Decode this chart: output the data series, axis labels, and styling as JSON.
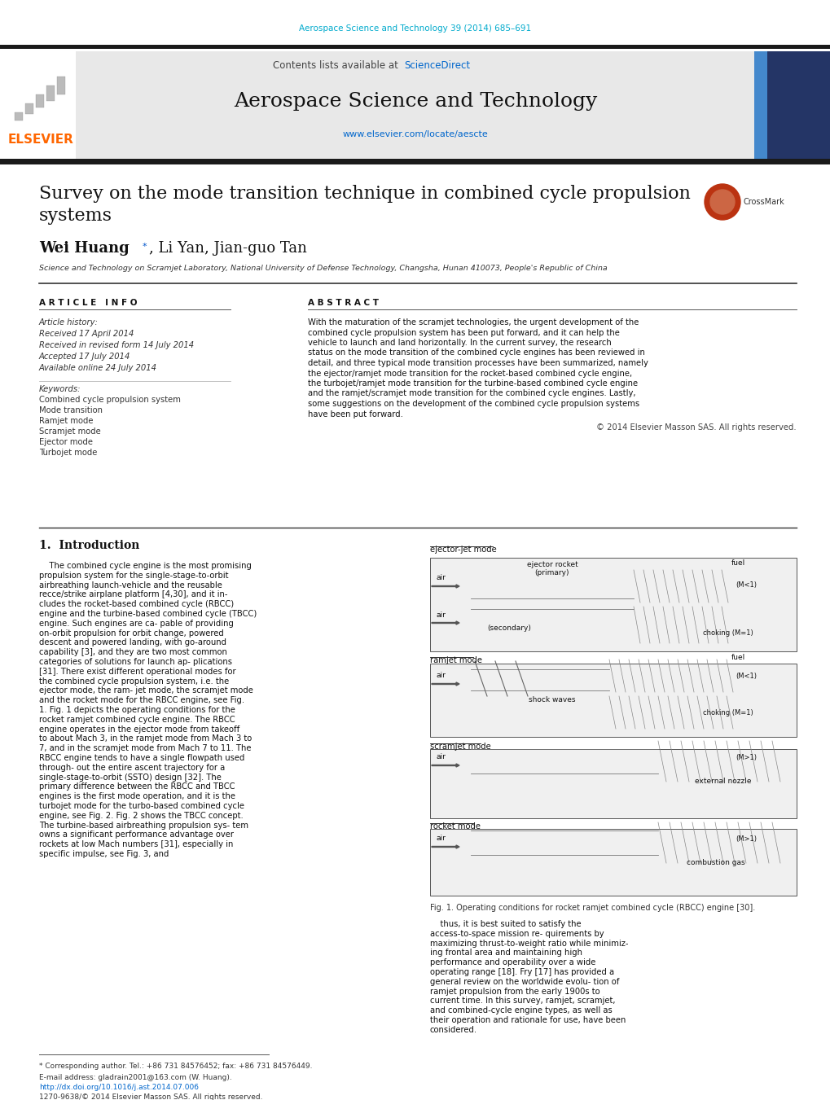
{
  "page_width": 10.2,
  "page_height": 13.51,
  "bg_color": "#ffffff",
  "header_journal_text": "Aerospace Science and Technology 39 (2014) 685–691",
  "header_journal_color": "#00aacc",
  "journal_name": "Aerospace Science and Technology",
  "contents_text": "Contents lists available at",
  "sciencedirect_text": "ScienceDirect",
  "sciencedirect_color": "#0066cc",
  "journal_url": "www.elsevier.com/locate/aescte",
  "journal_url_color": "#0066cc",
  "elsevier_color": "#ff6600",
  "elsevier_text": "ELSEVIER",
  "header_bg": "#e8e8e8",
  "dark_bar_color": "#1a1a1a",
  "paper_title_line1": "Survey on the mode transition technique in combined cycle propulsion",
  "paper_title_line2": "systems",
  "authors_bold": "Wei Huang",
  "authors_rest": ", Li Yan, Jian-guo Tan",
  "affiliation": "Science and Technology on Scramjet Laboratory, National University of Defense Technology, Changsha, Hunan 410073, People's Republic of China",
  "article_info_title": "A R T I C L E   I N F O",
  "abstract_title": "A B S T R A C T",
  "article_history_label": "Article history:",
  "received": "Received 17 April 2014",
  "revised": "Received in revised form 14 July 2014",
  "accepted": "Accepted 17 July 2014",
  "available": "Available online 24 July 2014",
  "keywords_label": "Keywords:",
  "keywords": [
    "Combined cycle propulsion system",
    "Mode transition",
    "Ramjet mode",
    "Scramjet mode",
    "Ejector mode",
    "Turbojet mode"
  ],
  "abstract_text": "With the maturation of the scramjet technologies, the urgent development of the combined cycle propulsion system has been put forward, and it can help the vehicle to launch and land horizontally. In the current survey, the research status on the mode transition of the combined cycle engines has been reviewed in detail, and three typical mode transition processes have been summarized, namely the ejector/ramjet mode transition for the rocket-based combined cycle engine, the turbojet/ramjet mode transition for the turbine-based combined cycle engine and the ramjet/scramjet mode transition for the combined cycle engines. Lastly, some suggestions on the development of the combined cycle propulsion systems have been put forward.",
  "copyright": "© 2014 Elsevier Masson SAS. All rights reserved.",
  "section1_title": "1.  Introduction",
  "intro_text": "The combined cycle engine is the most promising propulsion system for the single-stage-to-orbit airbreathing launch-vehicle and the reusable recce/strike airplane platform [4,30], and it in- cludes the rocket-based combined cycle (RBCC) engine and the turbine-based combined cycle (TBCC) engine. Such engines are ca- pable of providing on-orbit propulsion for orbit change, powered descent and powered landing, with go-around capability [3], and they are two most common categories of solutions for launch ap- plications [31]. There exist different operational modes for the combined cycle propulsion system, i.e. the ejector mode, the ram- jet mode, the scramjet mode and the rocket mode for the RBCC engine, see Fig. 1. Fig. 1 depicts the operating conditions for the rocket ramjet combined cycle engine. The RBCC engine operates in the ejector mode from takeoff to about Mach 3, in the ramjet mode from Mach 3 to 7, and in the scramjet mode from Mach 7 to 11. The RBCC engine tends to have a single flowpath used through- out the entire ascent trajectory for a single-stage-to-orbit (SSTO) design [32]. The primary difference between the RBCC and TBCC engines is the first mode operation, and it is the turbojet mode for the turbo-based combined cycle engine, see Fig. 2. Fig. 2 shows the TBCC concept. The turbine-based airbreathing propulsion sys- tem owns a significant performance advantage over rockets at low Mach numbers [31], especially in specific impulse, see Fig. 3, and",
  "right_col_text": "thus, it is best suited to satisfy the access-to-space mission re- quirements by maximizing thrust-to-weight ratio while minimiz- ing frontal area and maintaining high performance and operability over a wide operating range [18]. Fry [17] has provided a general review on the worldwide evolu- tion of ramjet propulsion from the early 1900s to current time. In this survey, ramjet, scramjet, and combined-cycle engine types, as well as their operation and rationale for use, have been considered.",
  "fig1_caption": "Fig. 1. Operating conditions for rocket ramjet combined cycle (RBCC) engine [30].",
  "footnote_star": "* Corresponding author. Tel.: +86 731 84576452; fax: +86 731 84576449.",
  "footnote_email": "E-mail address: gladrain2001@163.com (W. Huang).",
  "footnote_doi": "http://dx.doi.org/10.1016/j.ast.2014.07.006",
  "footnote_issn": "1270-9638/© 2014 Elsevier Masson SAS. All rights reserved."
}
